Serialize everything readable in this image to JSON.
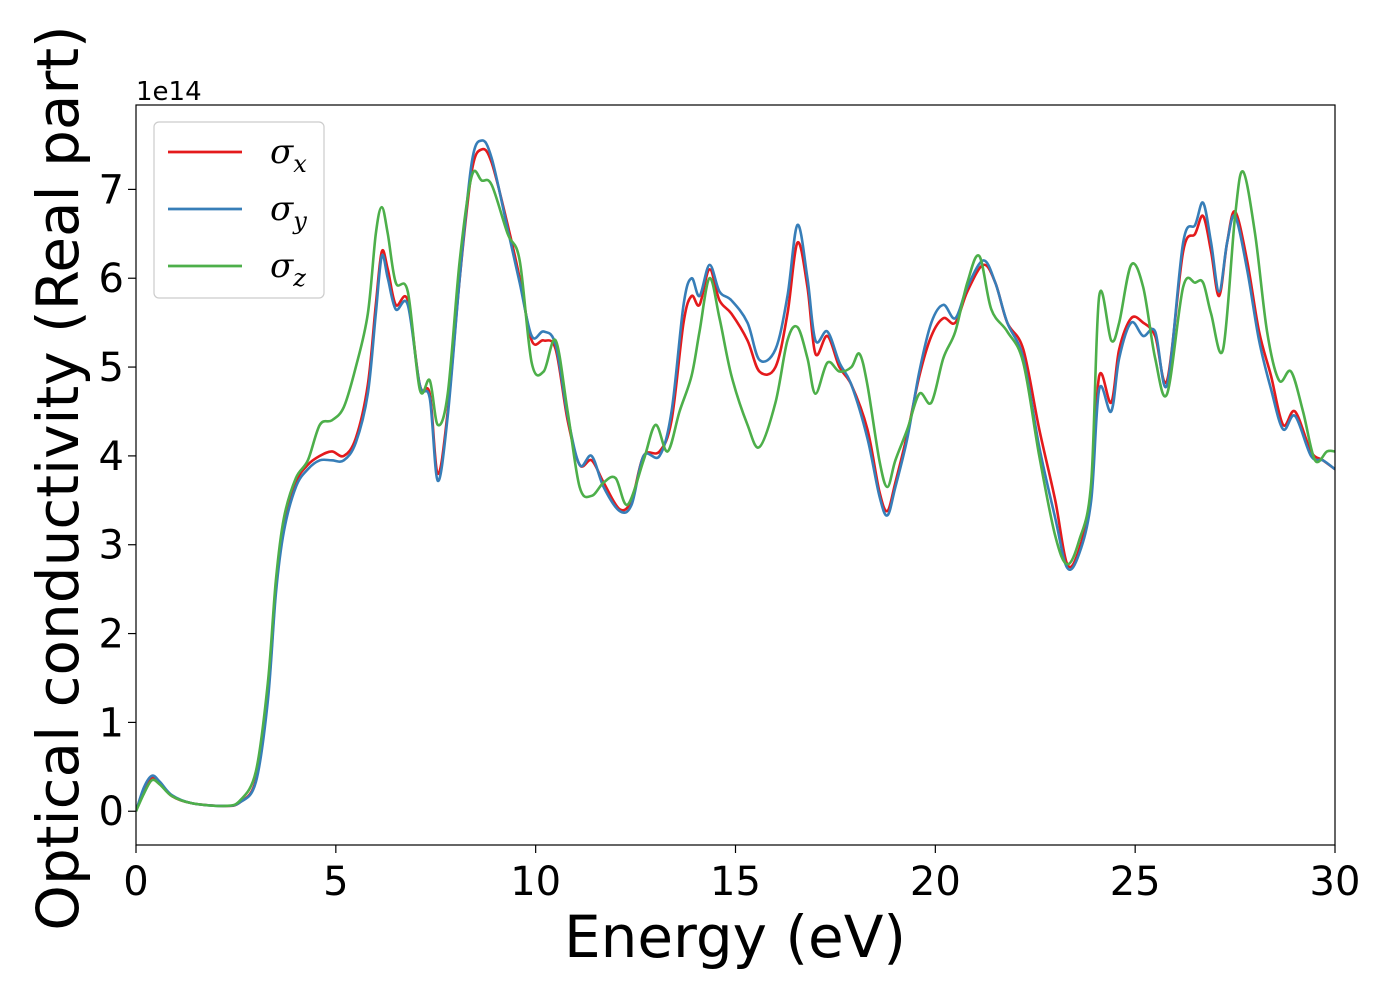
{
  "chart_data": {
    "type": "line",
    "xlabel": "Energy (eV)",
    "ylabel": "Optical conductivity (Real part)",
    "y_offset_label": "1e14",
    "xlim": [
      0,
      30
    ],
    "ylim": [
      -0.38,
      7.95
    ],
    "x_ticks": [
      0,
      5,
      10,
      15,
      20,
      25,
      30
    ],
    "y_ticks": [
      0,
      1,
      2,
      3,
      4,
      5,
      6,
      7
    ],
    "grid": false,
    "legend_position": "top-left",
    "series": [
      {
        "name": "σ",
        "subscript": "x",
        "color": "#e41a1c",
        "points": [
          [
            0,
            0
          ],
          [
            0.2,
            0.25
          ],
          [
            0.4,
            0.38
          ],
          [
            0.6,
            0.32
          ],
          [
            0.9,
            0.17
          ],
          [
            1.4,
            0.09
          ],
          [
            2.2,
            0.06
          ],
          [
            2.6,
            0.1
          ],
          [
            3.0,
            0.35
          ],
          [
            3.3,
            1.3
          ],
          [
            3.5,
            2.5
          ],
          [
            3.7,
            3.2
          ],
          [
            4.0,
            3.7
          ],
          [
            4.3,
            3.9
          ],
          [
            4.6,
            4.0
          ],
          [
            4.9,
            4.05
          ],
          [
            5.2,
            4.0
          ],
          [
            5.5,
            4.2
          ],
          [
            5.8,
            4.8
          ],
          [
            6.0,
            5.7
          ],
          [
            6.15,
            6.3
          ],
          [
            6.3,
            6.1
          ],
          [
            6.5,
            5.7
          ],
          [
            6.8,
            5.75
          ],
          [
            7.1,
            4.8
          ],
          [
            7.35,
            4.7
          ],
          [
            7.55,
            3.8
          ],
          [
            7.8,
            4.5
          ],
          [
            8.1,
            6.0
          ],
          [
            8.4,
            7.2
          ],
          [
            8.65,
            7.45
          ],
          [
            8.9,
            7.3
          ],
          [
            9.3,
            6.6
          ],
          [
            9.6,
            6.0
          ],
          [
            9.9,
            5.3
          ],
          [
            10.2,
            5.3
          ],
          [
            10.5,
            5.2
          ],
          [
            10.8,
            4.4
          ],
          [
            11.1,
            3.9
          ],
          [
            11.4,
            3.95
          ],
          [
            11.7,
            3.7
          ],
          [
            12.1,
            3.4
          ],
          [
            12.4,
            3.5
          ],
          [
            12.7,
            4.0
          ],
          [
            13.1,
            4.05
          ],
          [
            13.4,
            4.4
          ],
          [
            13.7,
            5.5
          ],
          [
            13.9,
            5.8
          ],
          [
            14.1,
            5.7
          ],
          [
            14.35,
            6.1
          ],
          [
            14.6,
            5.75
          ],
          [
            14.9,
            5.6
          ],
          [
            15.3,
            5.3
          ],
          [
            15.6,
            4.95
          ],
          [
            16.0,
            5.0
          ],
          [
            16.3,
            5.6
          ],
          [
            16.55,
            6.4
          ],
          [
            16.8,
            5.9
          ],
          [
            17.0,
            5.15
          ],
          [
            17.3,
            5.35
          ],
          [
            17.6,
            5.0
          ],
          [
            17.9,
            4.8
          ],
          [
            18.3,
            4.3
          ],
          [
            18.6,
            3.6
          ],
          [
            18.8,
            3.38
          ],
          [
            19.0,
            3.7
          ],
          [
            19.3,
            4.25
          ],
          [
            19.6,
            4.9
          ],
          [
            19.9,
            5.35
          ],
          [
            20.2,
            5.55
          ],
          [
            20.5,
            5.5
          ],
          [
            20.8,
            5.85
          ],
          [
            21.2,
            6.15
          ],
          [
            21.5,
            5.95
          ],
          [
            21.8,
            5.5
          ],
          [
            22.2,
            5.2
          ],
          [
            22.6,
            4.3
          ],
          [
            23.0,
            3.5
          ],
          [
            23.3,
            2.78
          ],
          [
            23.6,
            2.95
          ],
          [
            23.9,
            3.6
          ],
          [
            24.1,
            4.9
          ],
          [
            24.4,
            4.6
          ],
          [
            24.6,
            5.2
          ],
          [
            24.9,
            5.55
          ],
          [
            25.2,
            5.5
          ],
          [
            25.5,
            5.35
          ],
          [
            25.8,
            4.85
          ],
          [
            26.2,
            6.3
          ],
          [
            26.5,
            6.5
          ],
          [
            26.7,
            6.7
          ],
          [
            26.9,
            6.3
          ],
          [
            27.1,
            5.8
          ],
          [
            27.3,
            6.4
          ],
          [
            27.5,
            6.75
          ],
          [
            27.8,
            6.2
          ],
          [
            28.1,
            5.4
          ],
          [
            28.4,
            4.9
          ],
          [
            28.7,
            4.35
          ],
          [
            29.0,
            4.5
          ],
          [
            29.4,
            4.05
          ],
          [
            29.7,
            3.95
          ],
          [
            30.0,
            3.85
          ]
        ]
      },
      {
        "name": "σ",
        "subscript": "y",
        "color": "#377eb8",
        "points": [
          [
            0,
            0
          ],
          [
            0.2,
            0.27
          ],
          [
            0.4,
            0.4
          ],
          [
            0.6,
            0.33
          ],
          [
            0.9,
            0.18
          ],
          [
            1.4,
            0.09
          ],
          [
            2.2,
            0.06
          ],
          [
            2.6,
            0.1
          ],
          [
            3.0,
            0.33
          ],
          [
            3.3,
            1.25
          ],
          [
            3.5,
            2.45
          ],
          [
            3.7,
            3.15
          ],
          [
            4.0,
            3.65
          ],
          [
            4.3,
            3.85
          ],
          [
            4.6,
            3.95
          ],
          [
            4.9,
            3.95
          ],
          [
            5.2,
            3.95
          ],
          [
            5.5,
            4.15
          ],
          [
            5.8,
            4.7
          ],
          [
            6.0,
            5.6
          ],
          [
            6.15,
            6.25
          ],
          [
            6.3,
            6.0
          ],
          [
            6.5,
            5.65
          ],
          [
            6.8,
            5.7
          ],
          [
            7.1,
            4.8
          ],
          [
            7.35,
            4.65
          ],
          [
            7.55,
            3.72
          ],
          [
            7.8,
            4.45
          ],
          [
            8.1,
            6.0
          ],
          [
            8.4,
            7.3
          ],
          [
            8.65,
            7.55
          ],
          [
            8.9,
            7.35
          ],
          [
            9.3,
            6.55
          ],
          [
            9.6,
            5.95
          ],
          [
            9.9,
            5.35
          ],
          [
            10.2,
            5.4
          ],
          [
            10.5,
            5.25
          ],
          [
            10.8,
            4.45
          ],
          [
            11.1,
            3.9
          ],
          [
            11.4,
            4.0
          ],
          [
            11.7,
            3.65
          ],
          [
            12.1,
            3.38
          ],
          [
            12.4,
            3.45
          ],
          [
            12.7,
            4.0
          ],
          [
            13.1,
            4.0
          ],
          [
            13.4,
            4.5
          ],
          [
            13.7,
            5.7
          ],
          [
            13.9,
            6.0
          ],
          [
            14.1,
            5.8
          ],
          [
            14.35,
            6.15
          ],
          [
            14.6,
            5.85
          ],
          [
            14.9,
            5.75
          ],
          [
            15.3,
            5.5
          ],
          [
            15.6,
            5.08
          ],
          [
            16.0,
            5.2
          ],
          [
            16.3,
            5.8
          ],
          [
            16.55,
            6.6
          ],
          [
            16.8,
            6.0
          ],
          [
            17.0,
            5.3
          ],
          [
            17.3,
            5.4
          ],
          [
            17.6,
            5.05
          ],
          [
            17.9,
            4.8
          ],
          [
            18.3,
            4.2
          ],
          [
            18.6,
            3.55
          ],
          [
            18.8,
            3.33
          ],
          [
            19.0,
            3.65
          ],
          [
            19.3,
            4.2
          ],
          [
            19.6,
            4.95
          ],
          [
            19.9,
            5.5
          ],
          [
            20.2,
            5.7
          ],
          [
            20.5,
            5.55
          ],
          [
            20.8,
            5.9
          ],
          [
            21.2,
            6.2
          ],
          [
            21.5,
            5.95
          ],
          [
            21.8,
            5.5
          ],
          [
            22.2,
            5.1
          ],
          [
            22.6,
            4.1
          ],
          [
            23.0,
            3.3
          ],
          [
            23.3,
            2.74
          ],
          [
            23.6,
            2.9
          ],
          [
            23.9,
            3.5
          ],
          [
            24.1,
            4.75
          ],
          [
            24.4,
            4.5
          ],
          [
            24.6,
            5.1
          ],
          [
            24.9,
            5.5
          ],
          [
            25.2,
            5.35
          ],
          [
            25.5,
            5.4
          ],
          [
            25.8,
            4.8
          ],
          [
            26.2,
            6.4
          ],
          [
            26.5,
            6.6
          ],
          [
            26.7,
            6.85
          ],
          [
            26.9,
            6.4
          ],
          [
            27.1,
            5.85
          ],
          [
            27.3,
            6.4
          ],
          [
            27.5,
            6.7
          ],
          [
            27.8,
            6.1
          ],
          [
            28.1,
            5.3
          ],
          [
            28.4,
            4.75
          ],
          [
            28.7,
            4.3
          ],
          [
            29.0,
            4.45
          ],
          [
            29.4,
            4.0
          ],
          [
            29.7,
            3.95
          ],
          [
            30.0,
            3.85
          ]
        ]
      },
      {
        "name": "σ",
        "subscript": "z",
        "color": "#4daf4a",
        "points": [
          [
            0,
            0
          ],
          [
            0.2,
            0.2
          ],
          [
            0.4,
            0.35
          ],
          [
            0.6,
            0.3
          ],
          [
            0.9,
            0.17
          ],
          [
            1.4,
            0.09
          ],
          [
            2.2,
            0.06
          ],
          [
            2.6,
            0.12
          ],
          [
            3.0,
            0.45
          ],
          [
            3.3,
            1.45
          ],
          [
            3.5,
            2.6
          ],
          [
            3.7,
            3.3
          ],
          [
            4.0,
            3.75
          ],
          [
            4.3,
            3.95
          ],
          [
            4.6,
            4.35
          ],
          [
            4.9,
            4.4
          ],
          [
            5.2,
            4.55
          ],
          [
            5.5,
            5.0
          ],
          [
            5.8,
            5.6
          ],
          [
            6.0,
            6.5
          ],
          [
            6.15,
            6.8
          ],
          [
            6.3,
            6.5
          ],
          [
            6.5,
            5.95
          ],
          [
            6.8,
            5.85
          ],
          [
            7.1,
            4.75
          ],
          [
            7.35,
            4.85
          ],
          [
            7.55,
            4.35
          ],
          [
            7.8,
            4.7
          ],
          [
            8.1,
            6.2
          ],
          [
            8.4,
            7.15
          ],
          [
            8.65,
            7.1
          ],
          [
            8.9,
            7.05
          ],
          [
            9.3,
            6.5
          ],
          [
            9.6,
            6.2
          ],
          [
            9.9,
            5.05
          ],
          [
            10.2,
            4.95
          ],
          [
            10.5,
            5.3
          ],
          [
            10.8,
            4.5
          ],
          [
            11.1,
            3.65
          ],
          [
            11.4,
            3.55
          ],
          [
            11.7,
            3.7
          ],
          [
            12.0,
            3.75
          ],
          [
            12.3,
            3.45
          ],
          [
            12.7,
            3.95
          ],
          [
            13.0,
            4.35
          ],
          [
            13.3,
            4.05
          ],
          [
            13.6,
            4.5
          ],
          [
            13.9,
            4.9
          ],
          [
            14.1,
            5.4
          ],
          [
            14.35,
            6.0
          ],
          [
            14.6,
            5.55
          ],
          [
            14.9,
            4.9
          ],
          [
            15.3,
            4.35
          ],
          [
            15.6,
            4.1
          ],
          [
            16.0,
            4.6
          ],
          [
            16.3,
            5.3
          ],
          [
            16.55,
            5.45
          ],
          [
            16.8,
            5.1
          ],
          [
            17.0,
            4.7
          ],
          [
            17.3,
            5.05
          ],
          [
            17.6,
            4.95
          ],
          [
            17.9,
            5.0
          ],
          [
            18.1,
            5.15
          ],
          [
            18.3,
            4.8
          ],
          [
            18.6,
            3.95
          ],
          [
            18.8,
            3.65
          ],
          [
            19.0,
            3.95
          ],
          [
            19.3,
            4.3
          ],
          [
            19.6,
            4.7
          ],
          [
            19.9,
            4.6
          ],
          [
            20.2,
            5.1
          ],
          [
            20.5,
            5.4
          ],
          [
            20.8,
            5.95
          ],
          [
            21.1,
            6.25
          ],
          [
            21.4,
            5.65
          ],
          [
            21.8,
            5.4
          ],
          [
            22.2,
            5.05
          ],
          [
            22.6,
            4.0
          ],
          [
            23.0,
            3.1
          ],
          [
            23.3,
            2.78
          ],
          [
            23.6,
            3.05
          ],
          [
            23.9,
            3.7
          ],
          [
            24.1,
            5.8
          ],
          [
            24.4,
            5.3
          ],
          [
            24.6,
            5.5
          ],
          [
            24.9,
            6.15
          ],
          [
            25.2,
            5.9
          ],
          [
            25.5,
            5.1
          ],
          [
            25.8,
            4.7
          ],
          [
            26.2,
            5.9
          ],
          [
            26.5,
            5.95
          ],
          [
            26.7,
            5.95
          ],
          [
            26.9,
            5.6
          ],
          [
            27.2,
            5.2
          ],
          [
            27.5,
            6.7
          ],
          [
            27.7,
            7.2
          ],
          [
            28.0,
            6.5
          ],
          [
            28.3,
            5.4
          ],
          [
            28.6,
            4.85
          ],
          [
            28.9,
            4.95
          ],
          [
            29.2,
            4.5
          ],
          [
            29.5,
            3.95
          ],
          [
            29.8,
            4.05
          ],
          [
            30.0,
            4.05
          ]
        ]
      }
    ]
  }
}
